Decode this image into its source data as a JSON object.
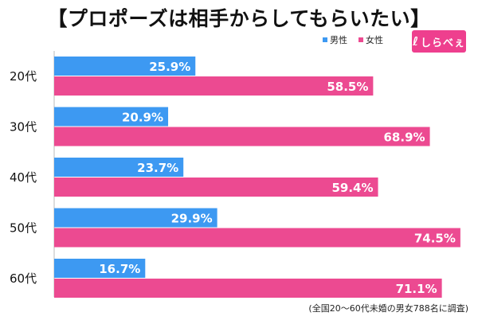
{
  "chart_data": {
    "type": "bar",
    "orientation": "horizontal",
    "title": "【プロポーズは相手からしてもらいたい】",
    "categories": [
      "20代",
      "30代",
      "40代",
      "50代",
      "60代"
    ],
    "series": [
      {
        "name": "男性",
        "color": "#3d99f2",
        "values": [
          25.9,
          20.9,
          23.7,
          29.9,
          16.7
        ],
        "labels": [
          "25.9%",
          "20.9%",
          "23.7%",
          "29.9%",
          "16.7%"
        ]
      },
      {
        "name": "女性",
        "color": "#ec4a91",
        "values": [
          58.5,
          68.9,
          59.4,
          74.5,
          71.1
        ],
        "labels": [
          "58.5%",
          "68.9%",
          "59.4%",
          "74.5%",
          "71.1%"
        ]
      }
    ],
    "xlim": [
      0,
      77
    ],
    "grid": false,
    "legend_position": "top-right",
    "footnote": "(全国20〜60代未婚の男女788名に調査)"
  },
  "brand": {
    "logo_text": "しらべぇ",
    "logo_mark": "ℓ",
    "logo_color": "#ee3f8e"
  }
}
